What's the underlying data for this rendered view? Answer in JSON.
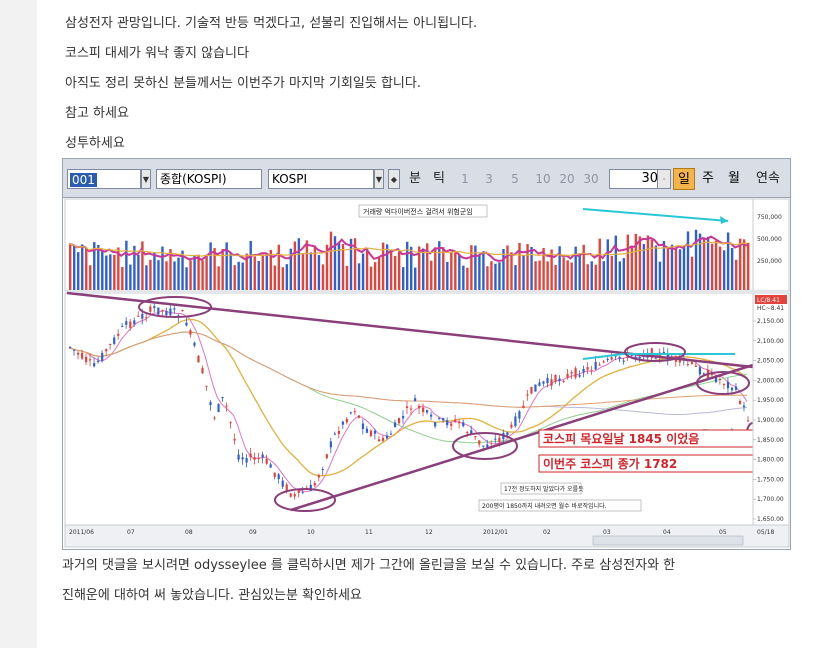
{
  "post": {
    "lines": [
      "삼성전자 관망입니다. 기술적 반등 먹겠다고, 섣불리 진입해서는 아니됩니다.",
      "코스피 대세가 워낙 좋지 않습니다",
      "아직도 정리 못하신 분들께서는 이번주가 마지막 기회일듯 합니다.",
      "참고 하세요",
      "성투하세요"
    ],
    "footer_line1": "과거의 댓글을 보시려면 odysseylee 를 클릭하시면 제가 그간에 올린글을 보실 수 있습니다. 주로 삼성전자와 한",
    "footer_line2": "진해운에 대하여 써 놓았습니다. 관심있는분 확인하세요"
  },
  "toolbar": {
    "code": "001",
    "index_name": "종합(KOSPI)",
    "market": "KOSPI",
    "btn_divide": "분",
    "btn_tick": "틱",
    "minute_options": [
      "1",
      "3",
      "5",
      "10",
      "20",
      "30"
    ],
    "period_value": "30",
    "day_label": "일",
    "week_label": "주",
    "month_label": "월",
    "continuous_label": "연속"
  },
  "chart": {
    "volume_note": "거래량 억다이버전스 걸려서 위험군임",
    "volume_ticks": [
      "750,000",
      "500,000",
      "250,000"
    ],
    "price_badge": "LC/8.41",
    "price_sub": "HC~8.41",
    "price_ticks": [
      "2,150.00",
      "2,100.00",
      "2,050.00",
      "2,000.00",
      "1,950.00",
      "1,900.00",
      "1,850.00",
      "1,800.00",
      "1,750.00",
      "1,700.00",
      "1,650.00"
    ],
    "annotation1": "코스피 목요일날 1845 이었음",
    "annotation2": "이번주 코스피 종가 1782",
    "note1": "17전 정도하지 말았다가 오를듯",
    "note2": "200평이 1850까지 내려오면 월수 바로작입니다.",
    "x_labels": [
      "2011/06",
      "07",
      "08",
      "09",
      "10",
      "11",
      "12",
      "2012/01",
      "02",
      "03",
      "04",
      "05",
      "05/18"
    ],
    "colors": {
      "up": "#e3433a",
      "down": "#2f5fd0",
      "trend": "#8b3f7a",
      "cyan": "#29c6d6",
      "annot": "#d2252b"
    }
  }
}
